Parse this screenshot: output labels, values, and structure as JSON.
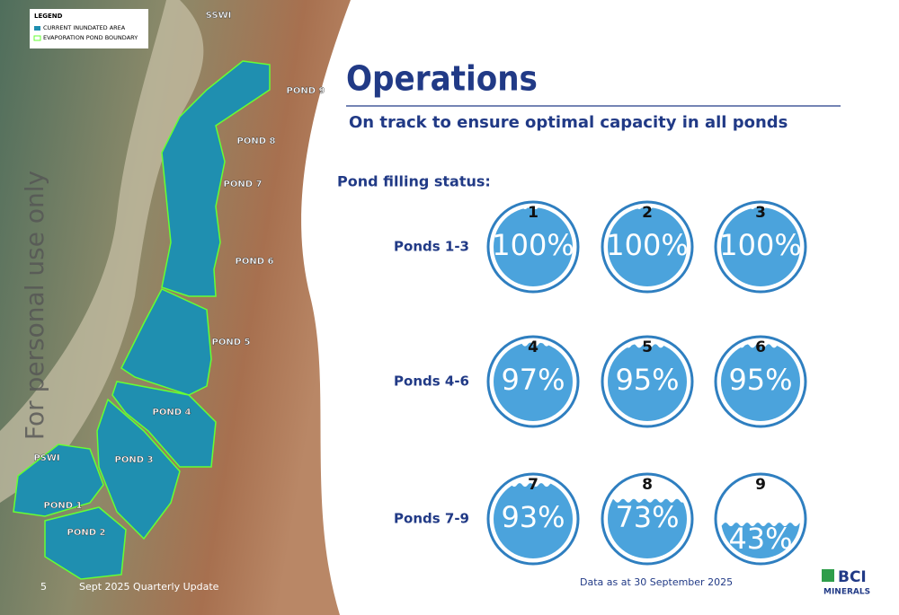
{
  "map": {
    "legend": {
      "title": "LEGEND",
      "items": [
        "CURRENT INUNDATED AREA",
        "EVAPORATION POND BOUNDARY"
      ]
    },
    "labels": [
      "SSWI",
      "POND 9",
      "POND 8",
      "POND 7",
      "POND 6",
      "POND 5",
      "POND 4",
      "POND 3",
      "PSWI",
      "POND 1",
      "POND 2"
    ],
    "watermark": "For personal use only"
  },
  "header": {
    "title": "Operations",
    "subtitle": "On track to ensure optimal capacity in all ponds"
  },
  "status": {
    "heading": "Pond filling status:",
    "rows": [
      {
        "label": "Ponds 1-3",
        "ponds": [
          {
            "number": 1,
            "fill": 100,
            "label": "100%"
          },
          {
            "number": 2,
            "fill": 100,
            "label": "100%"
          },
          {
            "number": 3,
            "fill": 100,
            "label": "100%"
          }
        ]
      },
      {
        "label": "Ponds 4-6",
        "ponds": [
          {
            "number": 4,
            "fill": 97,
            "label": "97%"
          },
          {
            "number": 5,
            "fill": 95,
            "label": "95%"
          },
          {
            "number": 6,
            "fill": 95,
            "label": "95%"
          }
        ]
      },
      {
        "label": "Ponds 7-9",
        "ponds": [
          {
            "number": 7,
            "fill": 93,
            "label": "93%"
          },
          {
            "number": 8,
            "fill": 73,
            "label": "73%"
          },
          {
            "number": 9,
            "fill": 43,
            "label": "43%"
          }
        ]
      }
    ]
  },
  "footer": {
    "page": 5,
    "text": "Sept 2025 Quarterly Update",
    "note": "Data as at 30 September 2025",
    "logo": [
      "BCI",
      "MINERALS"
    ]
  }
}
